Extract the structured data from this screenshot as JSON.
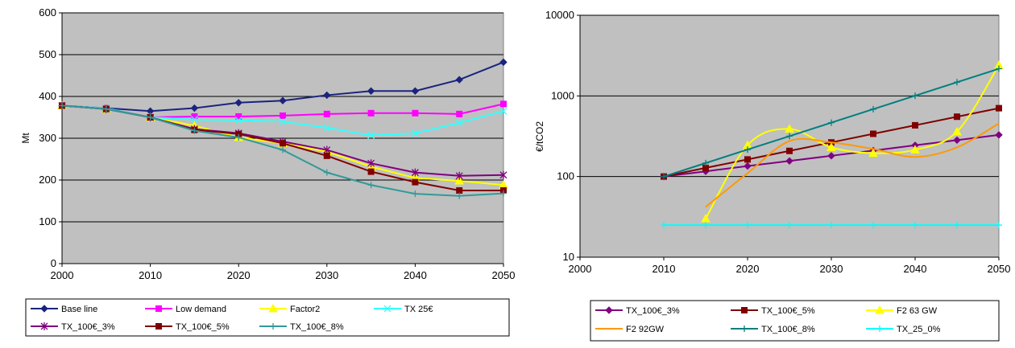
{
  "chart_data": [
    {
      "type": "line",
      "title": "",
      "xlabel": "",
      "ylabel": "Mt",
      "xlim": [
        2000,
        2050
      ],
      "ylim": [
        0,
        600
      ],
      "yscale": "linear",
      "xticks": [
        "2000",
        "2010",
        "2020",
        "2030",
        "2040",
        "2050"
      ],
      "yticks": [
        "0",
        "100",
        "200",
        "300",
        "400",
        "500",
        "600"
      ],
      "grid": "horizontal",
      "legend_position": "bottom",
      "x": [
        2000,
        2005,
        2010,
        2015,
        2020,
        2025,
        2030,
        2035,
        2040,
        2045,
        2050
      ],
      "series": [
        {
          "name": "Base line",
          "color": "#1a237e",
          "marker": "diamond",
          "values": [
            378,
            372,
            365,
            372,
            385,
            390,
            403,
            413,
            413,
            440,
            482
          ]
        },
        {
          "name": "Low demand",
          "color": "#ff00ff",
          "marker": "square",
          "values": [
            378,
            372,
            350,
            352,
            352,
            354,
            358,
            360,
            360,
            358,
            382
          ]
        },
        {
          "name": "Factor2",
          "color": "#ffff00",
          "marker": "triangle",
          "values": [
            378,
            370,
            350,
            330,
            302,
            288,
            268,
            232,
            205,
            198,
            188
          ]
        },
        {
          "name": "TX 25€",
          "color": "#33ffff",
          "marker": "x",
          "values": [
            378,
            372,
            350,
            345,
            343,
            340,
            325,
            307,
            312,
            337,
            365
          ]
        },
        {
          "name": "TX_100€_3%",
          "color": "#800080",
          "marker": "star",
          "values": [
            378,
            370,
            350,
            322,
            312,
            292,
            272,
            240,
            218,
            210,
            212
          ]
        },
        {
          "name": "TX_100€_5%",
          "color": "#800000",
          "marker": "square",
          "values": [
            378,
            370,
            350,
            320,
            310,
            288,
            258,
            220,
            195,
            175,
            175
          ]
        },
        {
          "name": "TX_100€_8%",
          "color": "#339999",
          "marker": "plus",
          "values": [
            378,
            370,
            350,
            318,
            302,
            272,
            218,
            188,
            167,
            162,
            168
          ]
        }
      ]
    },
    {
      "type": "line",
      "title": "",
      "xlabel": "",
      "ylabel": "€/tCO2",
      "xlim": [
        2000,
        2050
      ],
      "ylim": [
        10,
        10000
      ],
      "yscale": "log",
      "xticks": [
        "2000",
        "2010",
        "2020",
        "2030",
        "2040",
        "2050"
      ],
      "yticks": [
        "10",
        "100",
        "1000",
        "10000"
      ],
      "grid": "horizontal",
      "legend_position": "bottom",
      "series": [
        {
          "name": "TX_100€_3%",
          "color": "#800080",
          "marker": "diamond",
          "smooth": false,
          "x": [
            2010,
            2015,
            2020,
            2025,
            2030,
            2035,
            2040,
            2045,
            2050
          ],
          "values": [
            100,
            116,
            135,
            156,
            181,
            210,
            244,
            283,
            328
          ]
        },
        {
          "name": "TX_100€_5%",
          "color": "#800000",
          "marker": "square",
          "smooth": false,
          "x": [
            2010,
            2015,
            2020,
            2025,
            2030,
            2035,
            2040,
            2045,
            2050
          ],
          "values": [
            100,
            128,
            163,
            208,
            265,
            339,
            432,
            552,
            704
          ]
        },
        {
          "name": "F2 63 GW",
          "color": "#ffff00",
          "marker": "triangle",
          "smooth": true,
          "x": [
            2015,
            2020,
            2025,
            2030,
            2035,
            2040,
            2045,
            2050
          ],
          "values": [
            30,
            245,
            390,
            230,
            195,
            215,
            360,
            2400
          ]
        },
        {
          "name": "F2 92GW",
          "color": "#ff9900",
          "marker": "none",
          "smooth": true,
          "x": [
            2015,
            2020,
            2025,
            2030,
            2035,
            2040,
            2045,
            2050
          ],
          "values": [
            42,
            110,
            275,
            265,
            220,
            175,
            230,
            455
          ]
        },
        {
          "name": "TX_100€_8%",
          "color": "#007f7f",
          "marker": "plus",
          "smooth": false,
          "x": [
            2010,
            2015,
            2020,
            2025,
            2030,
            2035,
            2040,
            2045,
            2050
          ],
          "values": [
            100,
            147,
            216,
            317,
            466,
            685,
            1006,
            1479,
            2172
          ]
        },
        {
          "name": "TX_25_0%",
          "color": "#00ffff",
          "marker": "plus",
          "smooth": false,
          "x": [
            2010,
            2015,
            2020,
            2025,
            2030,
            2035,
            2040,
            2045,
            2050
          ],
          "values": [
            25,
            25,
            25,
            25,
            25,
            25,
            25,
            25,
            25
          ]
        }
      ]
    }
  ]
}
